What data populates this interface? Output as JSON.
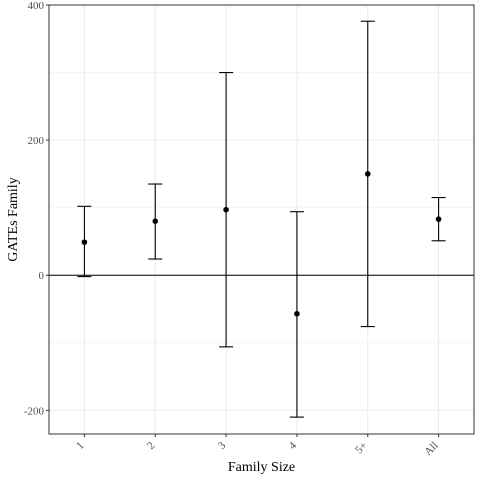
{
  "chart_data": {
    "type": "errorbar",
    "title": "",
    "xlabel": "Family Size",
    "ylabel": "GATEs Family",
    "categories": [
      "1",
      "2",
      "3",
      "4",
      "5+",
      "All"
    ],
    "ylim": [
      -235,
      400
    ],
    "yticks": [
      -200,
      0,
      200,
      400
    ],
    "grid": true,
    "reference_line": 0,
    "series": [
      {
        "points": [
          {
            "x": "1",
            "y": 49,
            "lower": -2,
            "upper": 102
          },
          {
            "x": "2",
            "y": 80,
            "lower": 24,
            "upper": 135
          },
          {
            "x": "3",
            "y": 97,
            "lower": -106,
            "upper": 300
          },
          {
            "x": "4",
            "y": -57,
            "lower": -210,
            "upper": 94
          },
          {
            "x": "5+",
            "y": 150,
            "lower": -76,
            "upper": 376
          },
          {
            "x": "All",
            "y": 83,
            "lower": 51,
            "upper": 115
          }
        ]
      }
    ]
  }
}
